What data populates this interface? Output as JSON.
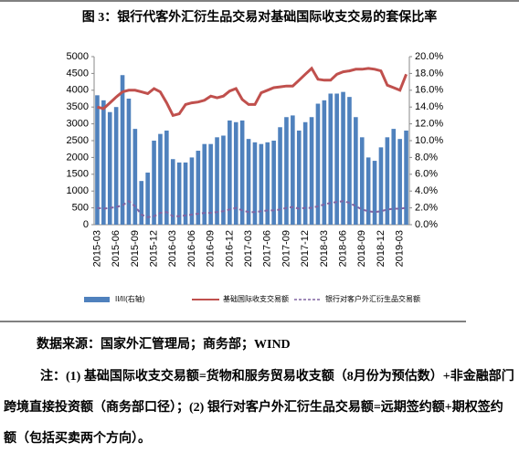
{
  "chart_data": {
    "type": "bar_line",
    "title": "图 3：银行代客外汇衍生品交易对基础国际收支交易的套保比率",
    "categories": [
      "2015-03",
      null,
      null,
      "2015-06",
      null,
      null,
      "2015-09",
      null,
      null,
      "2015-12",
      null,
      null,
      "2016-03",
      null,
      null,
      "2016-06",
      null,
      null,
      "2016-09",
      null,
      null,
      "2016-12",
      null,
      null,
      "2017-03",
      null,
      null,
      "2017-06",
      null,
      null,
      "2017-09",
      null,
      null,
      "2017-12",
      null,
      null,
      "2018-03",
      null,
      null,
      "2018-06",
      null,
      null,
      "2018-09",
      null,
      null,
      "2018-12",
      null,
      null,
      "2019-03",
      null
    ],
    "series": [
      {
        "name": "II/II(右轴)",
        "kind": "bar",
        "color": "#4f81bd",
        "values": [
          3850,
          3700,
          3350,
          3500,
          4450,
          3750,
          2850,
          1300,
          1550,
          2500,
          2700,
          2800,
          1950,
          1850,
          1850,
          2000,
          2200,
          2400,
          2400,
          2600,
          2650,
          3100,
          3050,
          3100,
          2550,
          2450,
          2400,
          2450,
          2500,
          2900,
          3200,
          3250,
          2800,
          3050,
          3200,
          3600,
          3700,
          3900,
          3900,
          3950,
          3800,
          3200,
          2600,
          2000,
          1900,
          2300,
          2600,
          2850,
          2550,
          2800
        ]
      },
      {
        "name": "基础国际收支交易额",
        "kind": "line",
        "axis": "y2",
        "color": "#c0504d",
        "values": [
          14,
          13.8,
          14.5,
          15.2,
          15.8,
          16,
          16,
          15.8,
          15.6,
          16.2,
          15.8,
          14.5,
          13,
          13.2,
          14.3,
          14.5,
          14.6,
          14.8,
          15.3,
          15.1,
          15.3,
          15.9,
          16.2,
          14.9,
          14.3,
          14.3,
          15.7,
          16,
          16.3,
          16.4,
          16.5,
          16.5,
          17.2,
          17.9,
          18.6,
          17.3,
          17.2,
          17.2,
          17.9,
          18.2,
          18.3,
          18.5,
          18.5,
          18.6,
          18.5,
          18.3,
          16.6,
          16.3,
          16.0,
          17.9
        ]
      },
      {
        "name": "银行对客户外汇衍生品交易额",
        "kind": "dashed",
        "axis": "y2",
        "color": "#8064a2",
        "values": [
          2.0,
          1.9,
          2.0,
          2.1,
          2.3,
          2.8,
          2.2,
          1.2,
          0.9,
          1.0,
          1.4,
          1.5,
          1.0,
          1.0,
          1.1,
          1.2,
          1.3,
          1.4,
          1.4,
          1.5,
          1.6,
          1.8,
          2.0,
          1.7,
          1.5,
          1.5,
          1.6,
          1.7,
          1.7,
          1.8,
          2.0,
          2.1,
          1.9,
          2.0,
          2.0,
          2.2,
          2.4,
          2.6,
          2.7,
          2.8,
          2.6,
          2.2,
          1.8,
          1.6,
          1.5,
          1.6,
          1.8,
          1.9,
          1.9,
          2.0
        ]
      }
    ],
    "ylim": [
      0,
      5000
    ],
    "yticks": [
      0,
      500,
      1000,
      1500,
      2000,
      2500,
      3000,
      3500,
      4000,
      4500,
      5000
    ],
    "y2lim": [
      0,
      20
    ],
    "y2ticks": [
      {
        "value": 0,
        "label": "0.0%"
      },
      {
        "value": 2,
        "label": "2.0%"
      },
      {
        "value": 4,
        "label": "4.0%"
      },
      {
        "value": 6,
        "label": "6.0%"
      },
      {
        "value": 8,
        "label": "8.0%"
      },
      {
        "value": 10,
        "label": "10.0%"
      },
      {
        "value": 12,
        "label": "12.0%"
      },
      {
        "value": 14,
        "label": "14.0%"
      },
      {
        "value": 16,
        "label": "16.0%"
      },
      {
        "value": 18,
        "label": "18.0%"
      },
      {
        "value": 20,
        "label": "20.0%"
      }
    ],
    "legend": "bottom"
  },
  "source": "数据来源：国家外汇管理局；商务部；WIND",
  "note": "注：(1) 基础国际收支交易额=货物和服务贸易收支额（8月份为预估数）+非金融部门跨境直接投资额（商务部口径）；(2) 银行对客户外汇衍生品交易额=远期签约额+期权签约额（包括买卖两个方向）。"
}
